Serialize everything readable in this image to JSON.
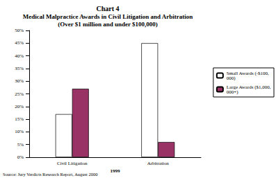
{
  "chart_data": {
    "type": "bar",
    "title": "Chart 4",
    "subtitle": [
      "Medical Malpractice Awards in Civil Litigation and Arbitration",
      "(Over $1 million and under $100,000)"
    ],
    "xlabel": "1999",
    "categories": [
      "Civil Litigation",
      "Arbitration"
    ],
    "series": [
      {
        "name": "Small Awards (-$100,000)",
        "color": "#ffffff",
        "values": [
          17,
          45
        ]
      },
      {
        "name": "Large Awards ($1,000,000+)",
        "color": "#993366",
        "values": [
          27,
          6
        ]
      }
    ],
    "ylim": [
      0,
      50
    ],
    "yticks": [
      {
        "value": 0,
        "label": "0%"
      },
      {
        "value": 5,
        "label": "5%"
      },
      {
        "value": 10,
        "label": "10%"
      },
      {
        "value": 15,
        "label": "15%"
      },
      {
        "value": 20,
        "label": "20%"
      },
      {
        "value": 25,
        "label": "25%"
      },
      {
        "value": 30,
        "label": "30%"
      },
      {
        "value": 35,
        "label": "35%"
      },
      {
        "value": 40,
        "label": "40%"
      },
      {
        "value": 45,
        "label": "45%"
      },
      {
        "value": 50,
        "label": "50%"
      }
    ],
    "grid": false,
    "legend": "right",
    "annotations": [
      "Source: Jury Verdicts Research Report, August 2000"
    ]
  }
}
